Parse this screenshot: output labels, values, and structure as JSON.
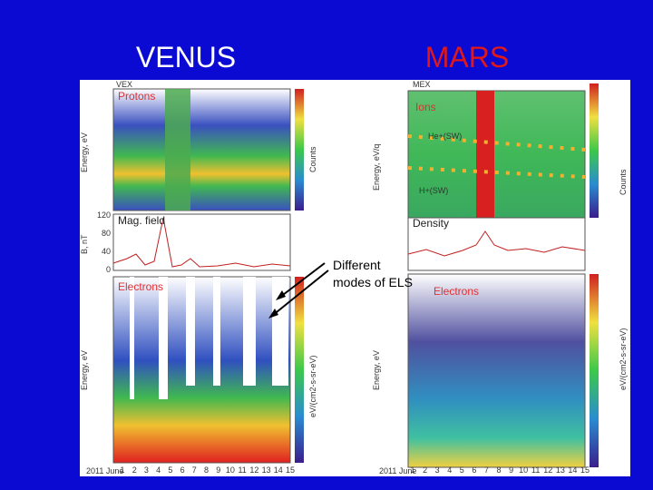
{
  "slide": {
    "title_left": "VENUS",
    "title_right": "MARS",
    "annotation": [
      "Different",
      "modes of ELS"
    ],
    "venus": {
      "spacecraft": "VEX",
      "panels": [
        "Protons",
        "Mag. field",
        "Electrons"
      ],
      "axis_labels": [
        "Energy, eV",
        "B, nT",
        "Energy, eV"
      ],
      "bar_labels": [
        "Counts",
        "eV/(cm2-s-sr-eV)"
      ],
      "field_ticks": [
        "120",
        "80",
        "40",
        "0"
      ],
      "date": "2011 June",
      "days": [
        "1",
        "2",
        "3",
        "4",
        "5",
        "6",
        "7",
        "8",
        "9",
        "10",
        "11",
        "12",
        "13",
        "14",
        "15"
      ]
    },
    "mars": {
      "spacecraft": "MEX",
      "panels": [
        "Ions",
        "Density",
        "Electrons"
      ],
      "axis_labels": [
        "Energy, eV/q",
        "Energy, eV"
      ],
      "ion_labels": [
        "He+(SW)",
        "H+(SW)"
      ],
      "bar_labels": [
        "Counts",
        "eV/(cm2-s-sr-eV)"
      ],
      "date": "2011 June",
      "days": [
        "1",
        "2",
        "3",
        "4",
        "5",
        "6",
        "7",
        "8",
        "9",
        "10",
        "11",
        "12",
        "13",
        "14",
        "15"
      ]
    }
  }
}
